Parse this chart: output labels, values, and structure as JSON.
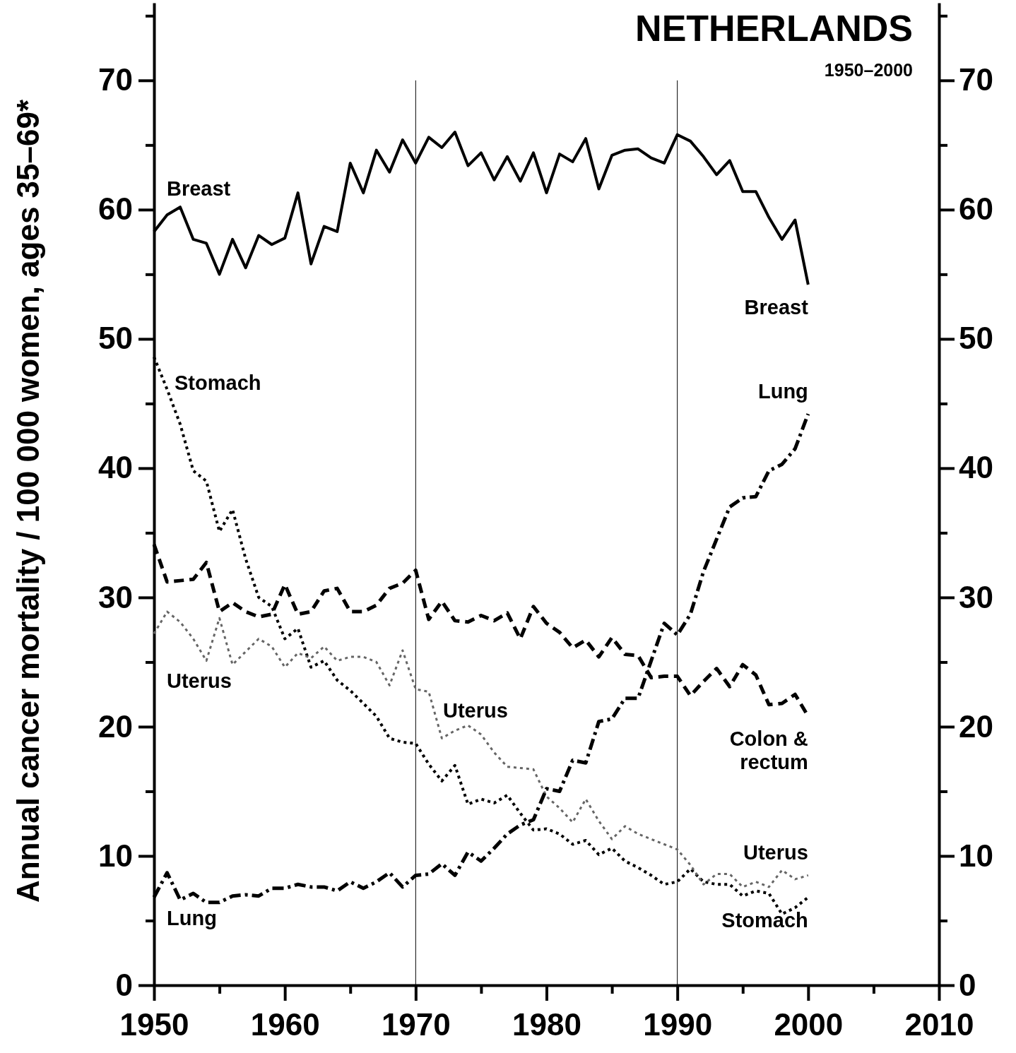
{
  "chart_data": {
    "type": "line",
    "title": "NETHERLANDS",
    "subtitle": "1950–2000",
    "ylabel": "Annual cancer mortality / 100 000 women, ages 35–69*",
    "x": [
      1950,
      1951,
      1952,
      1953,
      1954,
      1955,
      1956,
      1957,
      1958,
      1959,
      1960,
      1961,
      1962,
      1963,
      1964,
      1965,
      1966,
      1967,
      1968,
      1969,
      1970,
      1971,
      1972,
      1973,
      1974,
      1975,
      1976,
      1977,
      1978,
      1979,
      1980,
      1981,
      1982,
      1983,
      1984,
      1985,
      1986,
      1987,
      1988,
      1989,
      1990,
      1991,
      1992,
      1993,
      1994,
      1995,
      1996,
      1997,
      1998,
      1999,
      2000
    ],
    "series": [
      {
        "name": "Breast",
        "color": "#000000",
        "line_style": "solid",
        "values": [
          58.3,
          59.6,
          60.2,
          57.7,
          57.4,
          55.0,
          57.7,
          55.5,
          58.0,
          57.3,
          57.8,
          61.3,
          55.8,
          58.7,
          58.3,
          63.6,
          61.3,
          64.6,
          62.9,
          65.4,
          63.6,
          65.6,
          64.8,
          66.0,
          63.4,
          64.4,
          62.3,
          64.1,
          62.2,
          64.4,
          61.3,
          64.3,
          63.7,
          65.5,
          61.6,
          64.2,
          64.6,
          64.7,
          64.0,
          63.6,
          65.8,
          65.3,
          64.1,
          62.7,
          63.8,
          61.4,
          61.4,
          59.4,
          57.7,
          59.2,
          54.2
        ]
      },
      {
        "name": "Colon & rectum",
        "color": "#000000",
        "line_style": "dashed",
        "values": [
          34.1,
          31.2,
          31.3,
          31.4,
          32.7,
          28.9,
          29.6,
          28.9,
          28.5,
          28.7,
          31.0,
          28.7,
          28.9,
          30.5,
          30.7,
          28.9,
          28.9,
          29.4,
          30.7,
          31.1,
          32.1,
          28.3,
          29.7,
          28.2,
          28.1,
          28.6,
          28.2,
          28.8,
          26.8,
          29.3,
          28.0,
          27.3,
          26.1,
          26.7,
          25.4,
          26.9,
          25.6,
          25.5,
          23.8,
          23.9,
          23.9,
          22.4,
          23.5,
          24.5,
          23.1,
          24.8,
          24.0,
          21.7,
          21.8,
          22.5,
          20.8
        ]
      },
      {
        "name": "Stomach",
        "color": "#000000",
        "line_style": "dotted",
        "values": [
          48.6,
          46.1,
          43.4,
          39.8,
          39.0,
          35.1,
          36.8,
          33.0,
          30.0,
          29.3,
          26.8,
          27.6,
          24.6,
          25.1,
          23.6,
          22.8,
          21.8,
          20.8,
          19.1,
          18.8,
          18.7,
          17.1,
          15.8,
          17.0,
          14.0,
          14.4,
          14.1,
          14.7,
          13.3,
          12.0,
          12.1,
          11.7,
          10.9,
          11.2,
          10.1,
          10.6,
          9.6,
          9.1,
          8.5,
          7.8,
          8.0,
          9.0,
          8.0,
          7.8,
          7.8,
          6.9,
          7.3,
          7.1,
          5.5,
          6.0,
          6.8
        ]
      },
      {
        "name": "Uterus",
        "color": "#666666",
        "line_style": "dotted",
        "values": [
          27.2,
          28.9,
          28.1,
          26.8,
          25.1,
          28.4,
          24.8,
          25.8,
          26.8,
          26.2,
          24.6,
          25.7,
          25.3,
          26.2,
          25.1,
          25.4,
          25.4,
          25.0,
          23.2,
          25.9,
          22.9,
          22.7,
          19.1,
          19.7,
          20.1,
          19.4,
          18.0,
          16.9,
          16.8,
          16.7,
          14.6,
          13.7,
          12.6,
          14.4,
          12.7,
          11.3,
          12.3,
          11.7,
          11.3,
          10.9,
          10.5,
          9.3,
          7.8,
          8.6,
          8.6,
          7.6,
          8.0,
          7.6,
          8.9,
          8.2,
          8.5
        ]
      },
      {
        "name": "Lung",
        "color": "#000000",
        "line_style": "dashdot",
        "values": [
          6.8,
          8.7,
          6.6,
          7.1,
          6.4,
          6.4,
          6.9,
          7.0,
          6.9,
          7.5,
          7.5,
          7.8,
          7.6,
          7.6,
          7.3,
          8.0,
          7.5,
          8.0,
          8.7,
          7.6,
          8.5,
          8.6,
          9.4,
          8.5,
          10.3,
          9.6,
          10.6,
          11.7,
          12.4,
          12.8,
          15.2,
          15.0,
          17.4,
          17.2,
          20.4,
          20.6,
          22.2,
          22.2,
          25.1,
          28.0,
          27.1,
          28.7,
          32.0,
          34.5,
          37.0,
          37.7,
          37.8,
          39.8,
          40.3,
          41.5,
          44.2
        ]
      }
    ],
    "xlim": [
      1950,
      2010
    ],
    "xticks": [
      1950,
      {
        "value": 1955,
        "label": null
      },
      1960,
      {
        "value": 1965,
        "label": null
      },
      1970,
      {
        "value": 1975,
        "label": null
      },
      1980,
      {
        "value": 1985,
        "label": null
      },
      1990,
      {
        "value": 1995,
        "label": null
      },
      2000,
      {
        "value": 2005,
        "label": null
      },
      2010
    ],
    "ylim": [
      0,
      76
    ],
    "yticks": [
      0,
      {
        "value": 5,
        "label": null
      },
      10,
      {
        "value": 15,
        "label": null
      },
      20,
      {
        "value": 25,
        "label": null
      },
      30,
      {
        "value": 35,
        "label": null
      },
      40,
      {
        "value": 45,
        "label": null
      },
      50,
      {
        "value": 55,
        "label": null
      },
      60,
      {
        "value": 65,
        "label": null
      },
      70,
      {
        "value": 75,
        "label": null
      }
    ],
    "y2lim": [
      0,
      76
    ],
    "y2ticks": [
      0,
      {
        "value": 5,
        "label": null
      },
      10,
      {
        "value": 15,
        "label": null
      },
      20,
      {
        "value": 25,
        "label": null
      },
      30,
      {
        "value": 35,
        "label": null
      },
      40,
      {
        "value": 45,
        "label": null
      },
      50,
      {
        "value": 55,
        "label": null
      },
      60,
      {
        "value": 65,
        "label": null
      },
      70,
      {
        "value": 75,
        "label": null
      }
    ],
    "ref_lines": [
      {
        "axis": "x",
        "value": 1970
      },
      {
        "axis": "x",
        "value": 1990
      }
    ],
    "annotations": [
      "Breast",
      "Stomach",
      "Uterus",
      "Uterus",
      "Lung"
    ],
    "legend": false,
    "grid": false,
    "marker": "none"
  }
}
